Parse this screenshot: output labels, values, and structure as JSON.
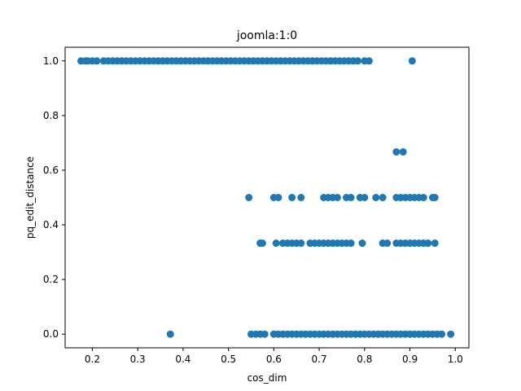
{
  "chart_data": {
    "type": "scatter",
    "title": "joomla:1:0",
    "xlabel": "cos_dim",
    "ylabel": "pq_edit_distance",
    "xlim": [
      0.14,
      1.03
    ],
    "ylim": [
      -0.05,
      1.05
    ],
    "xticks": [
      "0.2",
      "0.3",
      "0.4",
      "0.5",
      "0.6",
      "0.7",
      "0.8",
      "0.9",
      "1.0"
    ],
    "yticks": [
      "0.0",
      "0.2",
      "0.4",
      "0.6",
      "0.8",
      "1.0"
    ],
    "grid": false,
    "marker_color": "#1f77b4",
    "points": [
      [
        0.175,
        1.0
      ],
      [
        0.185,
        1.0
      ],
      [
        0.19,
        1.0
      ],
      [
        0.2,
        1.0
      ],
      [
        0.21,
        1.0
      ],
      [
        0.225,
        1.0
      ],
      [
        0.235,
        1.0
      ],
      [
        0.245,
        1.0
      ],
      [
        0.255,
        1.0
      ],
      [
        0.265,
        1.0
      ],
      [
        0.275,
        1.0
      ],
      [
        0.285,
        1.0
      ],
      [
        0.295,
        1.0
      ],
      [
        0.305,
        1.0
      ],
      [
        0.315,
        1.0
      ],
      [
        0.325,
        1.0
      ],
      [
        0.335,
        1.0
      ],
      [
        0.345,
        1.0
      ],
      [
        0.355,
        1.0
      ],
      [
        0.365,
        1.0
      ],
      [
        0.375,
        1.0
      ],
      [
        0.385,
        1.0
      ],
      [
        0.395,
        1.0
      ],
      [
        0.405,
        1.0
      ],
      [
        0.415,
        1.0
      ],
      [
        0.425,
        1.0
      ],
      [
        0.435,
        1.0
      ],
      [
        0.445,
        1.0
      ],
      [
        0.455,
        1.0
      ],
      [
        0.465,
        1.0
      ],
      [
        0.475,
        1.0
      ],
      [
        0.485,
        1.0
      ],
      [
        0.495,
        1.0
      ],
      [
        0.505,
        1.0
      ],
      [
        0.515,
        1.0
      ],
      [
        0.525,
        1.0
      ],
      [
        0.535,
        1.0
      ],
      [
        0.545,
        1.0
      ],
      [
        0.555,
        1.0
      ],
      [
        0.565,
        1.0
      ],
      [
        0.575,
        1.0
      ],
      [
        0.585,
        1.0
      ],
      [
        0.595,
        1.0
      ],
      [
        0.605,
        1.0
      ],
      [
        0.615,
        1.0
      ],
      [
        0.625,
        1.0
      ],
      [
        0.635,
        1.0
      ],
      [
        0.645,
        1.0
      ],
      [
        0.655,
        1.0
      ],
      [
        0.665,
        1.0
      ],
      [
        0.675,
        1.0
      ],
      [
        0.685,
        1.0
      ],
      [
        0.695,
        1.0
      ],
      [
        0.705,
        1.0
      ],
      [
        0.715,
        1.0
      ],
      [
        0.725,
        1.0
      ],
      [
        0.735,
        1.0
      ],
      [
        0.745,
        1.0
      ],
      [
        0.755,
        1.0
      ],
      [
        0.765,
        1.0
      ],
      [
        0.775,
        1.0
      ],
      [
        0.785,
        1.0
      ],
      [
        0.8,
        1.0
      ],
      [
        0.81,
        1.0
      ],
      [
        0.905,
        1.0
      ],
      [
        0.87,
        0.667
      ],
      [
        0.885,
        0.667
      ],
      [
        0.545,
        0.5
      ],
      [
        0.6,
        0.5
      ],
      [
        0.61,
        0.5
      ],
      [
        0.64,
        0.5
      ],
      [
        0.66,
        0.5
      ],
      [
        0.71,
        0.5
      ],
      [
        0.72,
        0.5
      ],
      [
        0.73,
        0.5
      ],
      [
        0.74,
        0.5
      ],
      [
        0.76,
        0.5
      ],
      [
        0.77,
        0.5
      ],
      [
        0.79,
        0.5
      ],
      [
        0.8,
        0.5
      ],
      [
        0.825,
        0.5
      ],
      [
        0.84,
        0.5
      ],
      [
        0.87,
        0.5
      ],
      [
        0.88,
        0.5
      ],
      [
        0.89,
        0.5
      ],
      [
        0.9,
        0.5
      ],
      [
        0.91,
        0.5
      ],
      [
        0.92,
        0.5
      ],
      [
        0.93,
        0.5
      ],
      [
        0.95,
        0.5
      ],
      [
        0.955,
        0.5
      ],
      [
        0.57,
        0.333
      ],
      [
        0.575,
        0.333
      ],
      [
        0.605,
        0.333
      ],
      [
        0.62,
        0.333
      ],
      [
        0.63,
        0.333
      ],
      [
        0.64,
        0.333
      ],
      [
        0.65,
        0.333
      ],
      [
        0.66,
        0.333
      ],
      [
        0.68,
        0.333
      ],
      [
        0.69,
        0.333
      ],
      [
        0.7,
        0.333
      ],
      [
        0.71,
        0.333
      ],
      [
        0.72,
        0.333
      ],
      [
        0.73,
        0.333
      ],
      [
        0.74,
        0.333
      ],
      [
        0.75,
        0.333
      ],
      [
        0.76,
        0.333
      ],
      [
        0.77,
        0.333
      ],
      [
        0.795,
        0.333
      ],
      [
        0.84,
        0.333
      ],
      [
        0.85,
        0.333
      ],
      [
        0.87,
        0.333
      ],
      [
        0.88,
        0.333
      ],
      [
        0.89,
        0.333
      ],
      [
        0.9,
        0.333
      ],
      [
        0.91,
        0.333
      ],
      [
        0.92,
        0.333
      ],
      [
        0.93,
        0.333
      ],
      [
        0.94,
        0.333
      ],
      [
        0.955,
        0.333
      ],
      [
        0.372,
        0.0
      ],
      [
        0.55,
        0.0
      ],
      [
        0.56,
        0.0
      ],
      [
        0.57,
        0.0
      ],
      [
        0.58,
        0.0
      ],
      [
        0.6,
        0.0
      ],
      [
        0.61,
        0.0
      ],
      [
        0.62,
        0.0
      ],
      [
        0.63,
        0.0
      ],
      [
        0.64,
        0.0
      ],
      [
        0.65,
        0.0
      ],
      [
        0.66,
        0.0
      ],
      [
        0.67,
        0.0
      ],
      [
        0.68,
        0.0
      ],
      [
        0.69,
        0.0
      ],
      [
        0.7,
        0.0
      ],
      [
        0.71,
        0.0
      ],
      [
        0.72,
        0.0
      ],
      [
        0.73,
        0.0
      ],
      [
        0.74,
        0.0
      ],
      [
        0.75,
        0.0
      ],
      [
        0.76,
        0.0
      ],
      [
        0.77,
        0.0
      ],
      [
        0.78,
        0.0
      ],
      [
        0.79,
        0.0
      ],
      [
        0.8,
        0.0
      ],
      [
        0.81,
        0.0
      ],
      [
        0.82,
        0.0
      ],
      [
        0.83,
        0.0
      ],
      [
        0.84,
        0.0
      ],
      [
        0.85,
        0.0
      ],
      [
        0.86,
        0.0
      ],
      [
        0.87,
        0.0
      ],
      [
        0.88,
        0.0
      ],
      [
        0.89,
        0.0
      ],
      [
        0.9,
        0.0
      ],
      [
        0.91,
        0.0
      ],
      [
        0.92,
        0.0
      ],
      [
        0.93,
        0.0
      ],
      [
        0.94,
        0.0
      ],
      [
        0.95,
        0.0
      ],
      [
        0.96,
        0.0
      ],
      [
        0.97,
        0.0
      ],
      [
        0.99,
        0.0
      ]
    ]
  }
}
